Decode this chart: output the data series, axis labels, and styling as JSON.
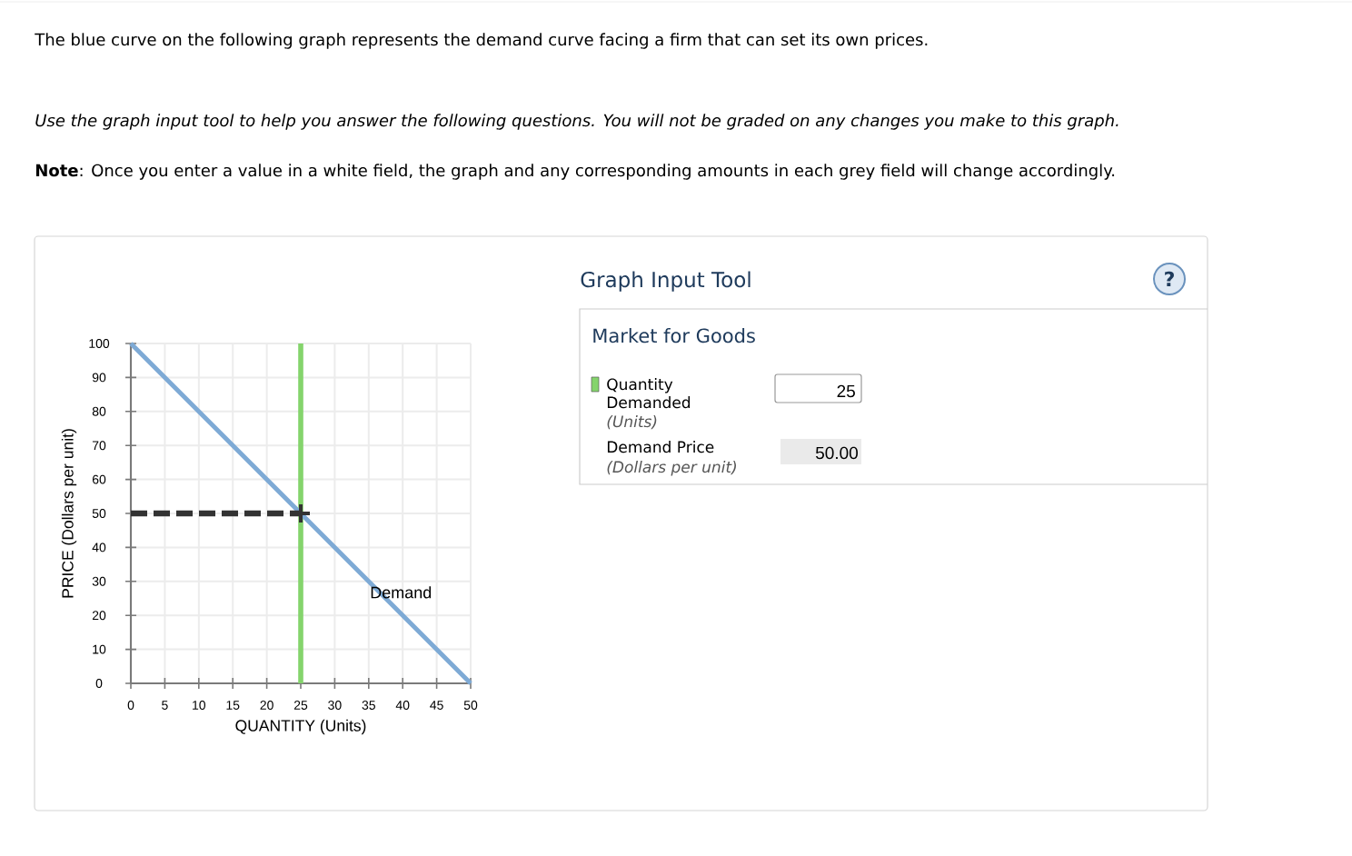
{
  "chart_data": [
    {
      "type": "line",
      "title": "The blue curve on the following graph represents the demand curve facing a firm that can set its own prices.",
      "subtitle": "Use the graph input tool to help you answer the following questions. You will not be graded on any changes you make to this graph.",
      "annotations": [
        "**Note**: Once you enter a value in a white field, the graph and any corresponding amounts in each grey field will change accordingly."
      ],
      "xlabel": "QUANTITY (Units)",
      "ylabel": "PRICE (Dollars per unit)",
      "xlim": [
        0,
        50
      ],
      "ylim": [
        0,
        100
      ],
      "xticks": [
        0,
        5,
        10,
        15,
        20,
        25,
        30,
        35,
        40,
        45,
        50
      ],
      "yticks": [
        0,
        10,
        20,
        30,
        40,
        50,
        60,
        70,
        80,
        90,
        100
      ],
      "grid": true,
      "series": [
        {
          "name": "Demand",
          "color": "#7eaad5",
          "x": [
            0,
            50
          ],
          "values": [
            100,
            0
          ]
        },
        {
          "color": "#333333",
          "x": [
            0,
            25
          ],
          "values": [
            50,
            50
          ],
          "line_style": "dashed"
        },
        {
          "type": "scatter",
          "color": "#333333",
          "x": [
            25
          ],
          "values": [
            50
          ],
          "marker": "cross"
        }
      ],
      "ref_lines": [
        {
          "axis": "x",
          "value": 25,
          "color": "#84d46c"
        }
      ]
    },
    {
      "type": "other",
      "title": "Graph Input Tool",
      "subtitle": "Market for Goods",
      "annotations": [
        "?",
        "Quantity Demanded",
        "(Units)",
        "25",
        "Demand Price",
        "(Dollars per unit)",
        "50.00"
      ]
    }
  ]
}
